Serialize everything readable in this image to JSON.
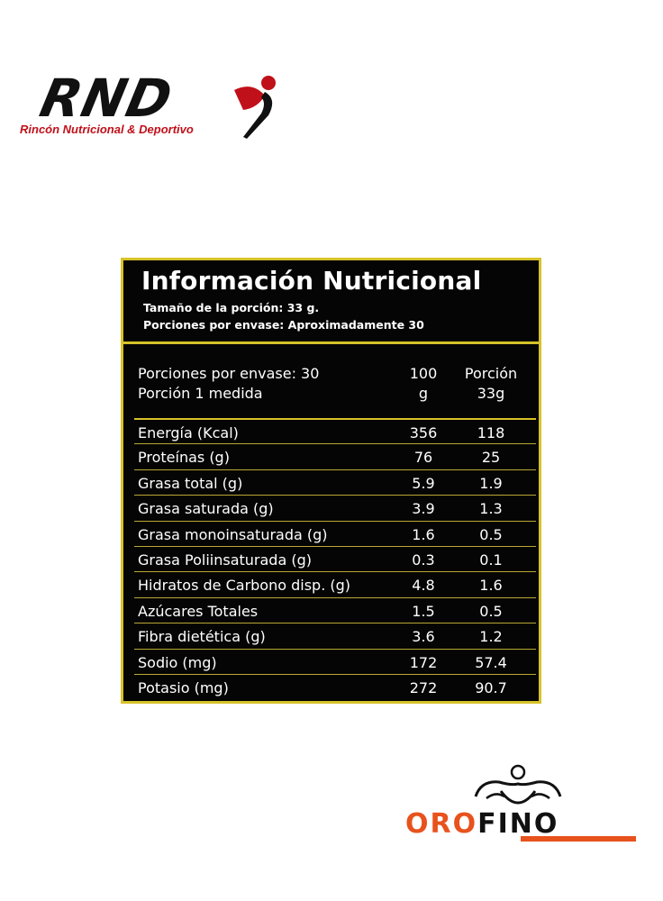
{
  "header_logo": {
    "brand": "RND",
    "tagline": "Rincón Nutricional & Deportivo"
  },
  "panel": {
    "title": "Información Nutricional",
    "serving_size": "Tamaño de la porción: 33 g.",
    "servings_per_container": "Porciones por envase: Aproximadamente 30",
    "header_label_1": "Porciones por envase: 30",
    "header_label_2": "Porción 1 medida",
    "col1_line1": "100",
    "col1_line2": "g",
    "col2_line1": "Porción",
    "col2_line2": "33g",
    "rows": [
      {
        "label": "Energía (Kcal)",
        "per100": "356",
        "perServing": "118"
      },
      {
        "label": "Proteínas (g)",
        "per100": "76",
        "perServing": "25"
      },
      {
        "label": "Grasa total (g)",
        "per100": "5.9",
        "perServing": "1.9"
      },
      {
        "label": "Grasa saturada (g)",
        "per100": "3.9",
        "perServing": "1.3"
      },
      {
        "label": "Grasa monoinsaturada (g)",
        "per100": "1.6",
        "perServing": "0.5"
      },
      {
        "label": "Grasa Poliinsaturada (g)",
        "per100": "0.3",
        "perServing": "0.1"
      },
      {
        "label": "Hidratos de Carbono disp. (g)",
        "per100": "4.8",
        "perServing": "1.6"
      },
      {
        "label": "Azúcares Totales",
        "per100": "1.5",
        "perServing": "0.5"
      },
      {
        "label": "Fibra dietética (g)",
        "per100": "3.6",
        "perServing": "1.2"
      },
      {
        "label": "Sodio (mg)",
        "per100": "172",
        "perServing": "57.4"
      },
      {
        "label": "Potasio (mg)",
        "per100": "272",
        "perServing": "90.7"
      }
    ]
  },
  "footer_logo": {
    "part1": "ORO",
    "part2": "FINO"
  },
  "colors": {
    "panel_border": "#d7c229",
    "brand_red": "#c0101a",
    "brand_orange": "#e8521d"
  }
}
